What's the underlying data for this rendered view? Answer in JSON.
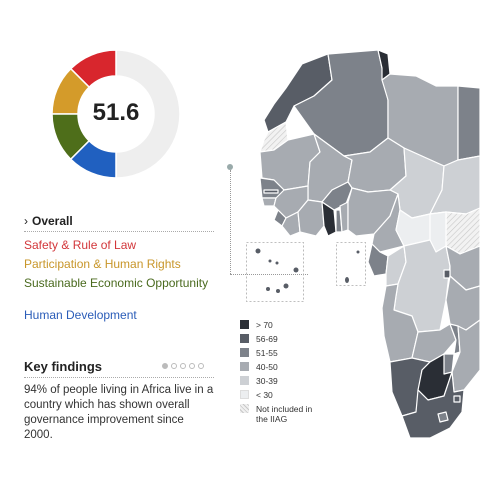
{
  "donut": {
    "score": "51.6",
    "segments": [
      {
        "category": "Safety & Rule of Law",
        "fraction": 0.125,
        "color": "#d8262d"
      },
      {
        "category": "Participation & Human Rights",
        "fraction": 0.125,
        "color": "#d49b2a"
      },
      {
        "category": "Sustainable Economic Opportunity",
        "fraction": 0.125,
        "color": "#4e6e1a"
      },
      {
        "category": "Human Development",
        "fraction": 0.125,
        "color": "#2060c0"
      }
    ],
    "remainder_color": "#eeeeee"
  },
  "overall": {
    "label": "Overall"
  },
  "categories": {
    "safety": "Safety & Rule of Law",
    "participation": "Participation & Human Rights",
    "sustainable": "Sustainable Economic Opportunity",
    "human": "Human Development"
  },
  "key_findings": {
    "title": "Key findings",
    "text": "94% of people living in Africa live in a country which has shown overall governance improvement since 2000.",
    "page_count": 5,
    "active_page": 1
  },
  "legend": [
    {
      "label": "> 70",
      "color": "#2a2e35"
    },
    {
      "label": "56-69",
      "color": "#585d66"
    },
    {
      "label": "51-55",
      "color": "#7d828a"
    },
    {
      "label": "40-50",
      "color": "#a7abb1"
    },
    {
      "label": "30-39",
      "color": "#cdd0d4"
    },
    {
      "label": "< 30",
      "color": "#eceef0"
    },
    {
      "label": "Not included in the IIAG",
      "color": "hatched"
    }
  ]
}
